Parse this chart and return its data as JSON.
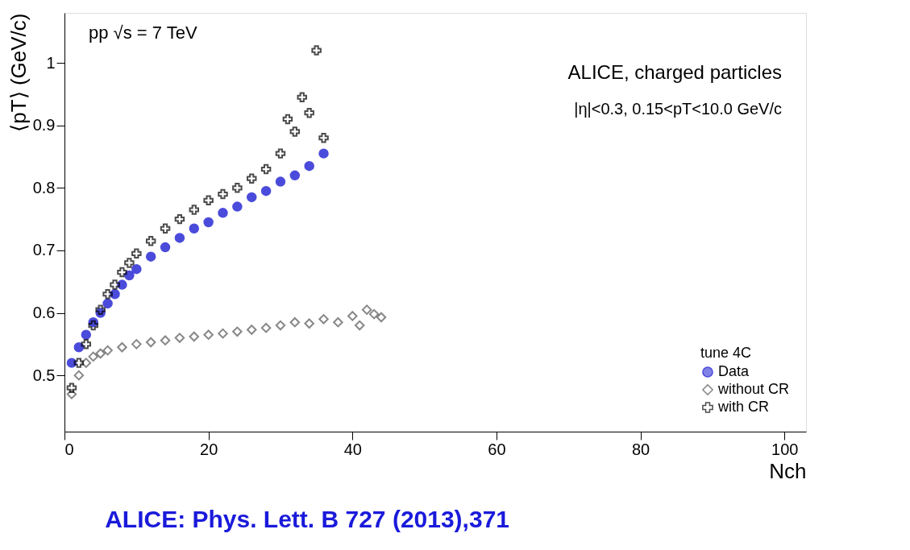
{
  "chart_data": {
    "type": "scatter",
    "xlabel": "Nch",
    "ylabel": "⟨pT⟩ (GeV/c)",
    "legend_title": "tune 4C",
    "annotations": [
      "pp  √s = 7 TeV",
      "ALICE, charged particles",
      "|η|<0.3, 0.15<pT<10.0 GeV/c",
      "ALICE: Phys. Lett. B 727 (2013),371"
    ],
    "xlim": [
      0,
      103
    ],
    "ylim": [
      0.41,
      1.08
    ],
    "xticks": [
      0,
      20,
      40,
      60,
      80,
      100
    ],
    "yticks": [
      0.5,
      0.6,
      0.7,
      0.8,
      0.9,
      1
    ],
    "grid": false,
    "legend": "bottom right",
    "series": [
      {
        "name": "Data",
        "color": "#0000cc",
        "marker": "circle",
        "x": [
          1,
          2,
          3,
          4,
          5,
          6,
          7,
          8,
          9,
          10,
          12,
          14,
          16,
          18,
          20,
          22,
          24,
          26,
          28,
          30,
          32,
          34,
          36
        ],
        "values": [
          0.52,
          0.545,
          0.565,
          0.585,
          0.6,
          0.615,
          0.63,
          0.645,
          0.66,
          0.67,
          0.69,
          0.705,
          0.72,
          0.735,
          0.745,
          0.76,
          0.77,
          0.785,
          0.795,
          0.81,
          0.82,
          0.835,
          0.855
        ]
      },
      {
        "name": "without CR",
        "color": "#555555",
        "marker": "diamond",
        "x": [
          1,
          2,
          3,
          4,
          5,
          6,
          8,
          10,
          12,
          14,
          16,
          18,
          20,
          22,
          24,
          26,
          28,
          30,
          32,
          34,
          36,
          38,
          40,
          41,
          42,
          43,
          44
        ],
        "values": [
          0.47,
          0.5,
          0.52,
          0.53,
          0.535,
          0.54,
          0.545,
          0.55,
          0.553,
          0.556,
          0.56,
          0.562,
          0.565,
          0.567,
          0.57,
          0.573,
          0.576,
          0.58,
          0.585,
          0.583,
          0.59,
          0.585,
          0.595,
          0.58,
          0.605,
          0.598,
          0.593
        ]
      },
      {
        "name": "with CR",
        "color": "#000000",
        "marker": "cross",
        "x": [
          1,
          2,
          3,
          4,
          5,
          6,
          7,
          8,
          9,
          10,
          12,
          14,
          16,
          18,
          20,
          22,
          24,
          26,
          28,
          30,
          31,
          32,
          33,
          34,
          35,
          36
        ],
        "values": [
          0.48,
          0.52,
          0.55,
          0.58,
          0.605,
          0.63,
          0.645,
          0.665,
          0.68,
          0.695,
          0.715,
          0.735,
          0.75,
          0.765,
          0.78,
          0.79,
          0.8,
          0.815,
          0.83,
          0.855,
          0.91,
          0.89,
          0.945,
          0.92,
          1.02,
          0.88
        ]
      }
    ]
  }
}
